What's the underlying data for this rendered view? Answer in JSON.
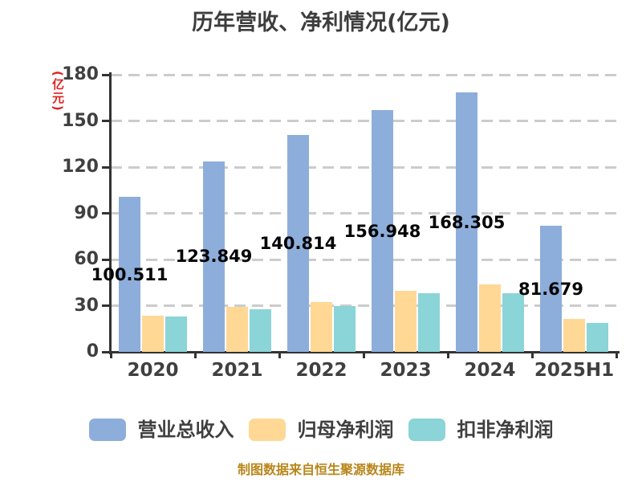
{
  "title": "历年营收、净利情况(亿元)",
  "footer": "制图数据来自恒生聚源数据库",
  "colors": {
    "background": "#ffffff",
    "axis": "#333333",
    "grid": "#cccccc",
    "title_text": "#3d3d3d",
    "tick_text": "#404040",
    "unit_label_text": "#e02020",
    "footer_text": "#b8861b",
    "bar_label_text": "#050505"
  },
  "chart_data": {
    "type": "bar",
    "title": "历年营收、净利情况(亿元)",
    "ylabel": "(亿元)",
    "xlabel": "",
    "ylim": [
      0,
      180
    ],
    "y_ticks": [
      0,
      30,
      60,
      90,
      120,
      150,
      180
    ],
    "grid": "horizontal dashed",
    "legend_position": "bottom",
    "categories": [
      "2020",
      "2021",
      "2022",
      "2023",
      "2024",
      "2025H1"
    ],
    "series": [
      {
        "name": "营业总收入",
        "color": "#8daedb",
        "values": [
          100.511,
          123.849,
          140.814,
          156.948,
          168.305,
          81.679
        ],
        "labels": [
          "100.511",
          "123.849",
          "140.814",
          "156.948",
          "168.305",
          "81.679"
        ]
      },
      {
        "name": "归母净利润",
        "color": "#ffd896",
        "values": [
          23.5,
          29.4,
          32.1,
          39.5,
          43.8,
          21.4
        ]
      },
      {
        "name": "扣非净利润",
        "color": "#8bd4d7",
        "values": [
          22.9,
          27.4,
          29.5,
          37.9,
          38.2,
          18.6
        ]
      }
    ]
  }
}
